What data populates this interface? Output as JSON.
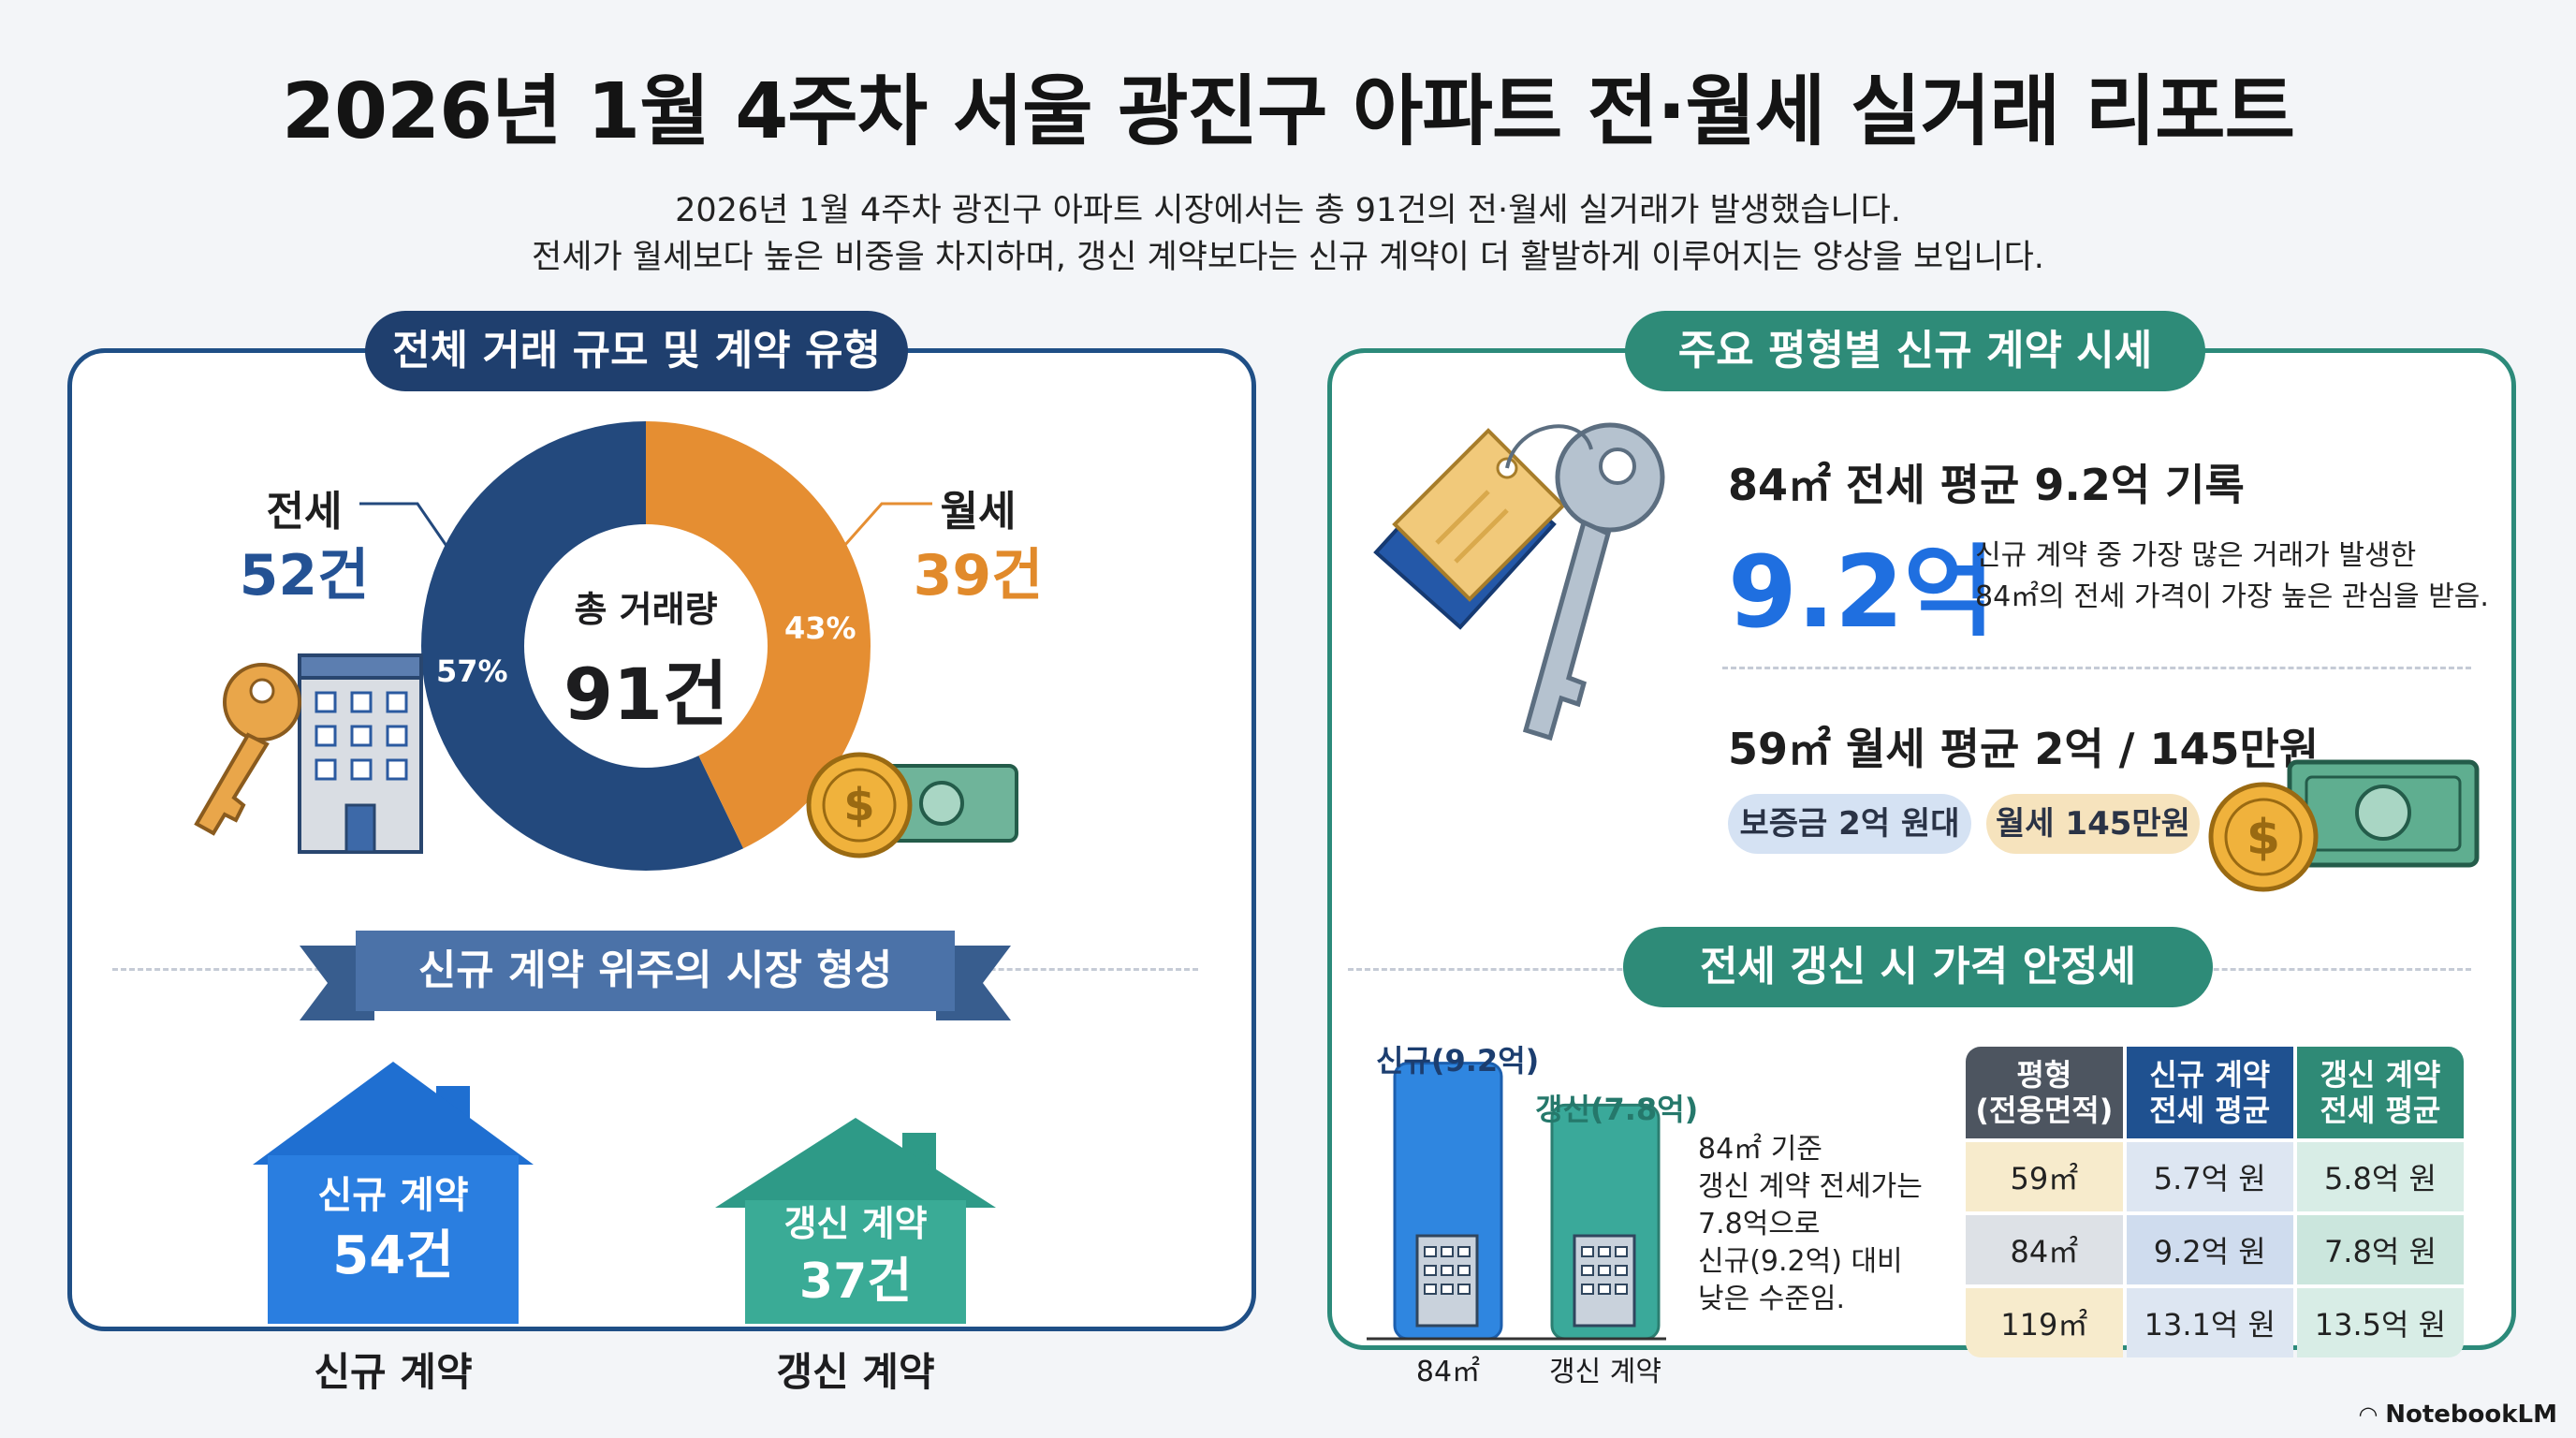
{
  "title": "2026년 1월 4주차 서울 광진구 아파트 전·월세 실거래 리포트",
  "subtitle_lines": [
    "2026년 1월 4주차 광진구 아파트 시장에서는 총 91건의 전·월세 실거래가 발생했습니다.",
    "전세가 월세보다 높은 비중을 차지하며, 갱신 계약보다는 신규 계약이 더 활발하게 이루어지는 양상을 보입니다."
  ],
  "left": {
    "header": "전체 거래 규모 및 계약 유형",
    "jeonse_label": "전세",
    "jeonse_count": "52건",
    "wolse_label": "월세",
    "wolse_count": "39건",
    "donut_center_label": "총 거래량",
    "donut_center_value": "91건",
    "jeonse_pct_label": "57%",
    "wolse_pct_label": "43%",
    "ribbon": "신규 계약 위주의 시장 형성",
    "new_house_title": "신규 계약",
    "new_house_count": "54건",
    "renew_house_title": "갱신 계약",
    "renew_house_count": "37건",
    "new_caption": "신규 계약",
    "renew_caption": "갱신 계약"
  },
  "chart_data": [
    {
      "type": "pie",
      "categories": [
        "전세",
        "월세"
      ],
      "values": [
        52,
        39
      ],
      "percent_labels": [
        "57%",
        "43%"
      ],
      "title": "",
      "center_text": "총 거래량 91건",
      "colors": [
        "#23497d",
        "#e58e32"
      ]
    },
    {
      "type": "bar",
      "categories": [
        "신규(9.2억)",
        "갱신(7.8억)"
      ],
      "values": [
        9.2,
        7.8
      ],
      "title": "",
      "xlabel": "",
      "ylabel": "",
      "colors": [
        "#2f86e0",
        "#3aa99a"
      ]
    }
  ],
  "right": {
    "header": "주요 평형별 신규 계약 시세",
    "s84_title": "84㎡ 전세 평균 9.2억 기록",
    "s84_big": "9.2억",
    "s84_desc1": "신규 계약 중 가장 많은 거래가 발생한",
    "s84_desc2": "84㎡의 전세 가격이 가장 높은 관심을 받음.",
    "s59_title": "59㎡ 월세 평균 2억 / 145만원",
    "chip_deposit": "보증금 2억 원대",
    "chip_rent": "월세 145만원",
    "header2": "전세 갱신 시 가격 안정세",
    "bar_label_new": "신규(9.2억)",
    "bar_label_renew": "갱신(7.8억)",
    "x_label_1": "84㎡",
    "x_label_2": "갱신 계약",
    "note_lines": [
      "84㎡ 기준",
      "갱신 계약 전세가는",
      "7.8억으로",
      "신규(9.2억) 대비",
      "낮은 수준임."
    ],
    "table": {
      "headers": [
        [
          "평형",
          "(전용면적)"
        ],
        [
          "신규 계약",
          "전세 평균"
        ],
        [
          "갱신 계약",
          "전세 평균"
        ]
      ],
      "rows": [
        [
          "59㎡",
          "5.7억 원",
          "5.8억 원"
        ],
        [
          "84㎡",
          "9.2억 원",
          "7.8억 원"
        ],
        [
          "119㎡",
          "13.1억 원",
          "13.5억 원"
        ]
      ]
    }
  },
  "branding": "NotebookLM",
  "colors": {
    "navy": "#1f3f6e",
    "blue": "#245294",
    "orange": "#e18a2b",
    "teal": "#2e8b78",
    "bright_blue": "#1f6fe0"
  },
  "icons": [
    "key-icon",
    "building-icon",
    "coin-icon",
    "banknote-icon",
    "price-tag-icon",
    "house-icon"
  ]
}
